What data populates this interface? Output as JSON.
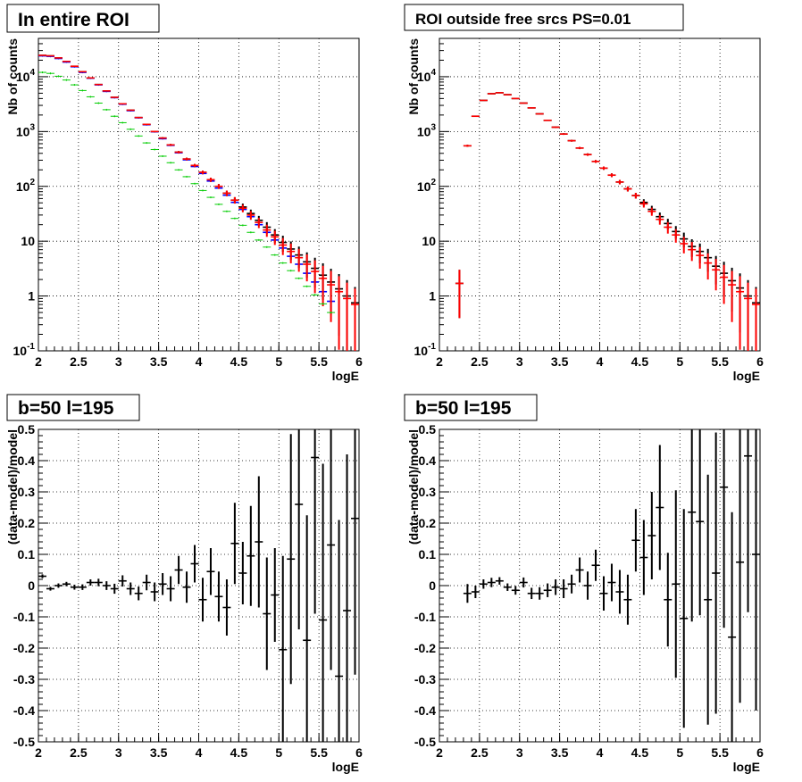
{
  "colors": {
    "black": "#000000",
    "blue": "#0000ff",
    "red": "#ff0000",
    "green": "#00cc00"
  },
  "chart_data": [
    {
      "type": "scatter",
      "title": "In entire ROI",
      "xlabel": "logE",
      "ylabel": "Nb of counts",
      "xlim": [
        2,
        6
      ],
      "ylim": [
        0.1,
        50000
      ],
      "yscale": "log",
      "grid": true,
      "xticks": [
        "2",
        "2.5",
        "3",
        "3.5",
        "4",
        "4.5",
        "5",
        "5.5",
        "6"
      ],
      "yticks": [
        {
          "value": 0.1,
          "base": "10",
          "exp": "-1"
        },
        {
          "value": 1,
          "base": "1",
          "exp": ""
        },
        {
          "value": 10,
          "base": "10",
          "exp": ""
        },
        {
          "value": 100,
          "base": "10",
          "exp": "2"
        },
        {
          "value": 1000,
          "base": "10",
          "exp": "3"
        },
        {
          "value": 10000,
          "base": "10",
          "exp": "4"
        }
      ],
      "series": [
        {
          "color": "#000000",
          "x": [
            2.05,
            2.15,
            2.25,
            2.35,
            2.45,
            2.55,
            2.65,
            2.75,
            2.85,
            2.95,
            3.05,
            3.15,
            3.25,
            3.35,
            3.45,
            3.55,
            3.65,
            3.75,
            3.85,
            3.95,
            4.05,
            4.15,
            4.25,
            4.35,
            4.45,
            4.55,
            4.65,
            4.75,
            4.85,
            4.95,
            5.05,
            5.15,
            5.25,
            5.35,
            5.45,
            5.55,
            5.65,
            5.75,
            5.85,
            5.95
          ],
          "y": [
            24500,
            24000,
            22000,
            19000,
            15500,
            12300,
            9500,
            7200,
            5500,
            4200,
            3200,
            2450,
            1800,
            1350,
            1000,
            760,
            570,
            420,
            315,
            240,
            180,
            132,
            100,
            75,
            56,
            42,
            32,
            24,
            18,
            13,
            9.5,
            7.2,
            5.6,
            4.2,
            3.2,
            2.4,
            1.8,
            1.35,
            1.0,
            0.75
          ]
        },
        {
          "color": "#0000ff",
          "x": [
            2.05,
            2.15,
            2.25,
            2.35,
            2.45,
            2.55,
            2.65,
            2.75,
            2.85,
            2.95,
            3.05,
            3.15,
            3.25,
            3.35,
            3.45,
            3.55,
            3.65,
            3.75,
            3.85,
            3.95,
            4.05,
            4.15,
            4.25,
            4.35,
            4.45,
            4.55,
            4.65,
            4.75,
            4.85,
            4.95,
            5.05,
            5.15,
            5.25,
            5.35,
            5.45,
            5.55,
            5.65
          ],
          "y": [
            24000,
            23500,
            21500,
            18500,
            15200,
            12000,
            9400,
            7100,
            5400,
            4150,
            3150,
            2400,
            1780,
            1330,
            990,
            740,
            560,
            410,
            305,
            230,
            172,
            125,
            93,
            69,
            51,
            38,
            28,
            20,
            14.5,
            10.5,
            7.5,
            5.3,
            3.8,
            2.6,
            1.8,
            1.2,
            0.8
          ]
        },
        {
          "color": "#ff0000",
          "x": [
            2.05,
            2.15,
            2.25,
            2.35,
            2.45,
            2.55,
            2.65,
            2.75,
            2.85,
            2.95,
            3.05,
            3.15,
            3.25,
            3.35,
            3.45,
            3.55,
            3.65,
            3.75,
            3.85,
            3.95,
            4.05,
            4.15,
            4.25,
            4.35,
            4.45,
            4.55,
            4.65,
            4.75,
            4.85,
            4.95,
            5.05,
            5.15,
            5.25,
            5.35,
            5.45,
            5.55,
            5.65,
            5.75,
            5.85,
            5.95
          ],
          "y": [
            24500,
            24000,
            22000,
            19000,
            15500,
            12300,
            9500,
            7200,
            5500,
            4200,
            3200,
            2450,
            1800,
            1350,
            1000,
            760,
            570,
            420,
            315,
            240,
            180,
            132,
            100,
            75,
            56,
            40,
            30,
            22,
            16,
            12,
            8.5,
            6.5,
            5.0,
            3.8,
            2.8,
            2.1,
            1.6,
            1.2,
            0.9,
            0.7
          ],
          "yerr_lo": [
            0,
            0,
            0,
            0,
            0,
            0,
            0,
            0,
            0,
            0,
            0,
            0,
            0,
            0,
            0,
            0,
            0,
            0,
            0,
            0,
            0,
            0,
            0,
            0,
            0,
            0,
            0,
            0,
            0,
            0,
            0,
            0,
            0,
            0,
            0,
            0,
            0,
            0,
            0,
            0
          ]
        },
        {
          "color": "#00cc00",
          "x": [
            2.05,
            2.15,
            2.25,
            2.35,
            2.45,
            2.55,
            2.65,
            2.75,
            2.85,
            2.95,
            3.05,
            3.15,
            3.25,
            3.35,
            3.45,
            3.55,
            3.65,
            3.75,
            3.85,
            3.95,
            4.05,
            4.15,
            4.25,
            4.35,
            4.45,
            4.55,
            4.65,
            4.75,
            4.85,
            4.95,
            5.05,
            5.15,
            5.25,
            5.35,
            5.45,
            5.55,
            5.65
          ],
          "y": [
            12000,
            11500,
            10200,
            8700,
            7100,
            5600,
            4300,
            3300,
            2500,
            1900,
            1450,
            1100,
            830,
            620,
            470,
            355,
            270,
            200,
            150,
            112,
            84,
            63,
            47,
            35,
            26,
            19.5,
            14.5,
            10.5,
            7.8,
            5.6,
            4.0,
            2.9,
            2.1,
            1.5,
            1.05,
            0.72,
            0.5
          ]
        }
      ]
    },
    {
      "type": "scatter",
      "title": "ROI outside free srcs PS=0.01",
      "xlabel": "logE",
      "ylabel": "Nb of counts",
      "xlim": [
        2,
        6
      ],
      "ylim": [
        0.1,
        50000
      ],
      "yscale": "log",
      "grid": true,
      "xticks": [
        "2",
        "2.5",
        "3",
        "3.5",
        "4",
        "4.5",
        "5",
        "5.5",
        "6"
      ],
      "yticks": [
        {
          "value": 0.1,
          "base": "10",
          "exp": "-1"
        },
        {
          "value": 1,
          "base": "1",
          "exp": ""
        },
        {
          "value": 10,
          "base": "10",
          "exp": ""
        },
        {
          "value": 100,
          "base": "10",
          "exp": "2"
        },
        {
          "value": 1000,
          "base": "10",
          "exp": "3"
        },
        {
          "value": 10000,
          "base": "10",
          "exp": "4"
        }
      ],
      "series": [
        {
          "color": "#000000",
          "x": [
            2.25,
            2.35,
            2.45,
            2.55,
            2.65,
            2.75,
            2.85,
            2.95,
            3.05,
            3.15,
            3.25,
            3.35,
            3.45,
            3.55,
            3.65,
            3.75,
            3.85,
            3.95,
            4.05,
            4.15,
            4.25,
            4.35,
            4.45,
            4.55,
            4.65,
            4.75,
            4.85,
            4.95,
            5.05,
            5.15,
            5.25,
            5.35,
            5.45,
            5.55,
            5.65,
            5.75,
            5.85,
            5.95
          ],
          "y": [
            1.7,
            550,
            1900,
            3700,
            4900,
            5100,
            4700,
            4000,
            3300,
            2700,
            2100,
            1600,
            1200,
            900,
            680,
            500,
            380,
            285,
            215,
            160,
            120,
            90,
            68,
            51,
            38,
            28,
            21,
            15,
            11,
            8,
            6.5,
            5,
            3.5,
            2.6,
            1.9,
            1.4,
            1.0,
            0.75
          ]
        },
        {
          "color": "#ff0000",
          "x": [
            2.25,
            2.35,
            2.45,
            2.55,
            2.65,
            2.75,
            2.85,
            2.95,
            3.05,
            3.15,
            3.25,
            3.35,
            3.45,
            3.55,
            3.65,
            3.75,
            3.85,
            3.95,
            4.05,
            4.15,
            4.25,
            4.35,
            4.45,
            4.55,
            4.65,
            4.75,
            4.85,
            4.95,
            5.05,
            5.15,
            5.25,
            5.35,
            5.45,
            5.55,
            5.65,
            5.75,
            5.85,
            5.95
          ],
          "y": [
            1.7,
            550,
            1900,
            3700,
            4900,
            5100,
            4700,
            4000,
            3300,
            2700,
            2100,
            1600,
            1200,
            900,
            680,
            500,
            380,
            285,
            215,
            160,
            120,
            90,
            68,
            48,
            35,
            25,
            18,
            13,
            9,
            7,
            5.5,
            4,
            3,
            2.2,
            1.6,
            1.2,
            0.9,
            0.7
          ]
        }
      ]
    },
    {
      "type": "scatter",
      "title": "b=50 l=195",
      "xlabel": "logE",
      "ylabel": "(data-model)/model",
      "xlim": [
        2,
        6
      ],
      "ylim": [
        -0.5,
        0.5
      ],
      "grid": true,
      "xticks": [
        "2",
        "2.5",
        "3",
        "3.5",
        "4",
        "4.5",
        "5",
        "5.5",
        "6"
      ],
      "yticks": [
        "-0.5",
        "-0.4",
        "-0.3",
        "-0.2",
        "-0.1",
        "0",
        "0.1",
        "0.2",
        "0.3",
        "0.4",
        "0.5"
      ],
      "series": [
        {
          "color": "#000000",
          "x": [
            2.05,
            2.15,
            2.25,
            2.35,
            2.45,
            2.55,
            2.65,
            2.75,
            2.85,
            2.95,
            3.05,
            3.15,
            3.25,
            3.35,
            3.45,
            3.55,
            3.65,
            3.75,
            3.85,
            3.95,
            4.05,
            4.15,
            4.25,
            4.35,
            4.45,
            4.55,
            4.65,
            4.75,
            4.85,
            4.95,
            5.05,
            5.15,
            5.25,
            5.35,
            5.45,
            5.55,
            5.65,
            5.75,
            5.85,
            5.95
          ],
          "y": [
            0.03,
            -0.01,
            0.0,
            0.005,
            -0.005,
            -0.005,
            0.01,
            0.01,
            0.0,
            -0.01,
            0.015,
            -0.01,
            -0.025,
            0.01,
            -0.02,
            0.005,
            -0.01,
            0.05,
            -0.005,
            0.07,
            -0.045,
            0.045,
            -0.035,
            -0.07,
            0.135,
            0.04,
            0.095,
            0.14,
            -0.09,
            -0.03,
            -0.205,
            0.085,
            0.26,
            -0.175,
            0.41,
            -0.11,
            0.13,
            -0.29,
            -0.08,
            0.215
          ],
          "err": [
            0.006,
            0.006,
            0.007,
            0.007,
            0.008,
            0.009,
            0.01,
            0.012,
            0.014,
            0.016,
            0.018,
            0.02,
            0.022,
            0.025,
            0.03,
            0.035,
            0.04,
            0.045,
            0.05,
            0.06,
            0.07,
            0.075,
            0.08,
            0.09,
            0.13,
            0.1,
            0.16,
            0.21,
            0.18,
            0.15,
            0.3,
            0.4,
            0.4,
            0.4,
            0.5,
            0.5,
            0.4,
            0.5,
            0.5,
            0.5
          ]
        }
      ]
    },
    {
      "type": "scatter",
      "title": "b=50 l=195",
      "xlabel": "logE",
      "ylabel": "(data-model)/model",
      "xlim": [
        2,
        6
      ],
      "ylim": [
        -0.5,
        0.5
      ],
      "grid": true,
      "xticks": [
        "2",
        "2.5",
        "3",
        "3.5",
        "4",
        "4.5",
        "5",
        "5.5",
        "6"
      ],
      "yticks": [
        "-0.5",
        "-0.4",
        "-0.3",
        "-0.2",
        "-0.1",
        "0",
        "0.1",
        "0.2",
        "0.3",
        "0.4",
        "0.5"
      ],
      "series": [
        {
          "color": "#000000",
          "x": [
            2.35,
            2.45,
            2.55,
            2.65,
            2.75,
            2.85,
            2.95,
            3.05,
            3.15,
            3.25,
            3.35,
            3.45,
            3.55,
            3.65,
            3.75,
            3.85,
            3.95,
            4.05,
            4.15,
            4.25,
            4.35,
            4.45,
            4.55,
            4.65,
            4.75,
            4.85,
            4.95,
            5.05,
            5.15,
            5.25,
            5.35,
            5.45,
            5.55,
            5.65,
            5.75,
            5.85,
            5.95
          ],
          "y": [
            -0.025,
            -0.02,
            0.005,
            0.01,
            0.015,
            -0.005,
            -0.015,
            0.01,
            -0.025,
            -0.025,
            -0.015,
            -0.005,
            -0.01,
            0.005,
            0.05,
            0.0,
            0.065,
            -0.025,
            0.01,
            -0.02,
            -0.045,
            0.145,
            0.09,
            0.16,
            0.25,
            -0.045,
            0.005,
            -0.105,
            0.235,
            0.205,
            -0.045,
            0.04,
            0.315,
            -0.165,
            0.075,
            0.415,
            0.1
          ],
          "err": [
            0.03,
            0.02,
            0.015,
            0.015,
            0.012,
            0.012,
            0.014,
            0.016,
            0.018,
            0.02,
            0.022,
            0.025,
            0.03,
            0.03,
            0.04,
            0.045,
            0.05,
            0.055,
            0.06,
            0.07,
            0.08,
            0.1,
            0.12,
            0.14,
            0.2,
            0.15,
            0.3,
            0.35,
            0.35,
            0.3,
            0.4,
            0.45,
            0.45,
            0.4,
            0.45,
            0.5,
            0.5
          ]
        }
      ]
    }
  ]
}
